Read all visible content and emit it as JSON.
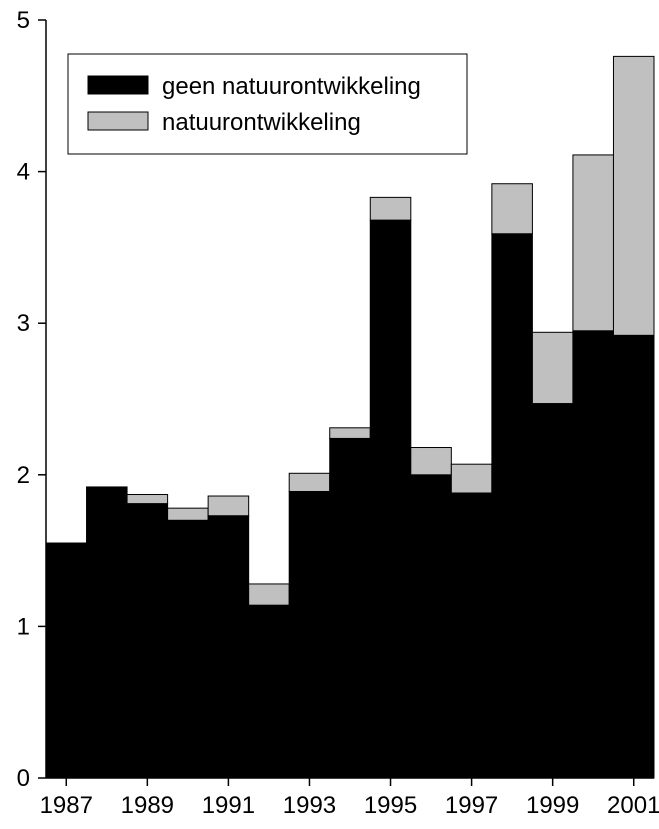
{
  "chart_data": {
    "type": "bar",
    "stacked": true,
    "title": "",
    "xlabel": "",
    "ylabel": "",
    "ylim": [
      0,
      5
    ],
    "yticks": [
      "0",
      "1",
      "2",
      "3",
      "4",
      "5"
    ],
    "xtick_labels": [
      "1987",
      "1989",
      "1991",
      "1993",
      "1995",
      "1997",
      "1999",
      "2001"
    ],
    "categories": [
      "1987",
      "1988",
      "1989",
      "1990",
      "1991",
      "1992",
      "1993",
      "1994",
      "1995",
      "1996",
      "1997",
      "1998",
      "1999",
      "2000",
      "2001"
    ],
    "series": [
      {
        "name": "geen natuurontwikkeling",
        "color": "#000000",
        "values": [
          1.55,
          1.92,
          1.81,
          1.7,
          1.73,
          1.14,
          1.89,
          2.24,
          3.68,
          2.0,
          1.88,
          3.59,
          2.47,
          2.95,
          2.92
        ]
      },
      {
        "name": "natuurontwikkeling",
        "color": "#c0c0c0",
        "values": [
          0.0,
          0.0,
          0.06,
          0.08,
          0.13,
          0.14,
          0.12,
          0.07,
          0.15,
          0.18,
          0.19,
          0.33,
          0.47,
          1.16,
          1.84
        ]
      }
    ],
    "legend_position": "top-left",
    "grid": false
  }
}
